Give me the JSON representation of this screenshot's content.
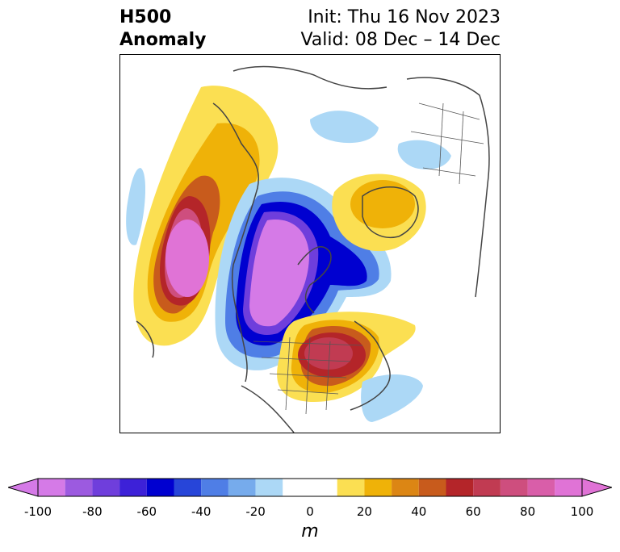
{
  "title": {
    "line1": "H500",
    "line2": "Anomaly"
  },
  "info": {
    "init": "Init: Thu 16 Nov 2023",
    "valid": "Valid: 08 Dec – 14 Dec"
  },
  "colorbar": {
    "label": "m",
    "ticks": [
      "-100",
      "-80",
      "-60",
      "-40",
      "-20",
      "0",
      "20",
      "40",
      "60",
      "80",
      "100"
    ],
    "range": [
      -100,
      100
    ],
    "bins": [
      {
        "from": -100,
        "to": -90,
        "color": "#d57ae7"
      },
      {
        "from": -90,
        "to": -80,
        "color": "#9c5ae0"
      },
      {
        "from": -80,
        "to": -70,
        "color": "#6f3edc"
      },
      {
        "from": -70,
        "to": -60,
        "color": "#3d21d8"
      },
      {
        "from": -60,
        "to": -50,
        "color": "#0000d0"
      },
      {
        "from": -50,
        "to": -40,
        "color": "#2745d9"
      },
      {
        "from": -40,
        "to": -30,
        "color": "#4f7ee6"
      },
      {
        "from": -30,
        "to": -20,
        "color": "#76abec"
      },
      {
        "from": -20,
        "to": -10,
        "color": "#acd8f6"
      },
      {
        "from": -10,
        "to": 10,
        "color": "#ffffff"
      },
      {
        "from": 10,
        "to": 20,
        "color": "#fbdf52"
      },
      {
        "from": 20,
        "to": 30,
        "color": "#efb208"
      },
      {
        "from": 30,
        "to": 40,
        "color": "#dc8614"
      },
      {
        "from": 40,
        "to": 50,
        "color": "#c85b1c"
      },
      {
        "from": 50,
        "to": 60,
        "color": "#b42529"
      },
      {
        "from": 60,
        "to": 70,
        "color": "#c13b52"
      },
      {
        "from": 70,
        "to": 80,
        "color": "#ce4e7e"
      },
      {
        "from": 80,
        "to": 90,
        "color": "#d95ea9"
      },
      {
        "from": 90,
        "to": 100,
        "color": "#e073d6"
      }
    ]
  }
}
